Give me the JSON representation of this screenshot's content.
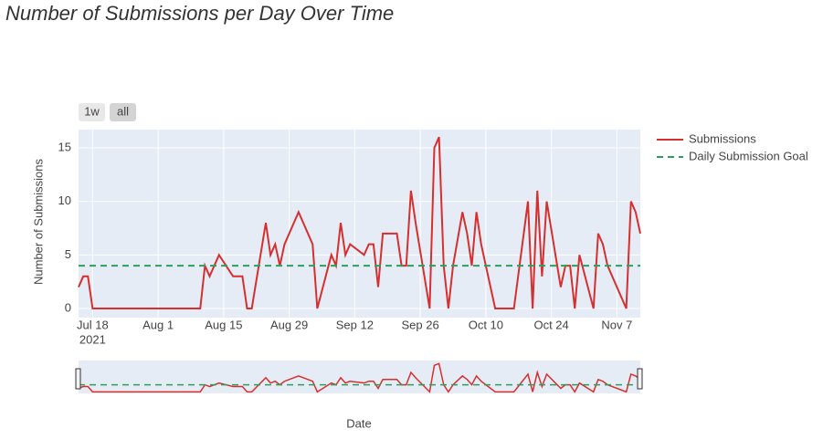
{
  "chart_data": {
    "type": "line",
    "title": "Number of Submissions per Day Over Time",
    "x_label": "Date",
    "y_label": "Number of Submissions",
    "range_buttons": [
      "1w",
      "all"
    ],
    "x": [
      "2021-07-15",
      "2021-07-16",
      "2021-07-17",
      "2021-07-18",
      "2021-08-10",
      "2021-08-11",
      "2021-08-12",
      "2021-08-14",
      "2021-08-17",
      "2021-08-19",
      "2021-08-20",
      "2021-08-21",
      "2021-08-24",
      "2021-08-25",
      "2021-08-26",
      "2021-08-27",
      "2021-08-28",
      "2021-08-31",
      "2021-09-03",
      "2021-09-04",
      "2021-09-07",
      "2021-09-08",
      "2021-09-09",
      "2021-09-10",
      "2021-09-11",
      "2021-09-14",
      "2021-09-15",
      "2021-09-16",
      "2021-09-17",
      "2021-09-18",
      "2021-09-21",
      "2021-09-22",
      "2021-09-23",
      "2021-09-24",
      "2021-09-25",
      "2021-09-28",
      "2021-09-29",
      "2021-09-30",
      "2021-10-01",
      "2021-10-02",
      "2021-10-03",
      "2021-10-05",
      "2021-10-06",
      "2021-10-07",
      "2021-10-08",
      "2021-10-09",
      "2021-10-12",
      "2021-10-16",
      "2021-10-19",
      "2021-10-20",
      "2021-10-21",
      "2021-10-22",
      "2021-10-23",
      "2021-10-26",
      "2021-10-27",
      "2021-10-28",
      "2021-10-29",
      "2021-10-30",
      "2021-11-02",
      "2021-11-03",
      "2021-11-04",
      "2021-11-05",
      "2021-11-09",
      "2021-11-10",
      "2021-11-11",
      "2021-11-12"
    ],
    "series": [
      {
        "name": "Submissions",
        "color": "#d62f2f",
        "values": [
          2,
          3,
          3,
          0,
          0,
          4,
          3,
          5,
          3,
          3,
          0,
          0,
          8,
          5,
          6,
          4,
          6,
          9,
          6,
          0,
          5,
          4,
          8,
          5,
          6,
          5,
          6,
          6,
          2,
          7,
          7,
          4,
          4,
          11,
          8,
          0,
          15,
          16,
          4,
          0,
          4,
          9,
          7,
          4,
          9,
          6,
          0,
          0,
          10,
          0,
          11,
          3,
          10,
          2,
          4,
          4,
          0,
          5,
          0,
          7,
          6,
          4,
          0,
          10,
          9,
          7
        ]
      }
    ],
    "goal": {
      "name": "Daily Submission Goal",
      "color": "#2ca05a",
      "value": 4
    },
    "xlim": [
      "2021-07-15",
      "2021-11-12"
    ],
    "xticks": [
      {
        "value": "2021-07-18",
        "label": "Jul 18"
      },
      {
        "value": "2021-08-01",
        "label": "Aug 1"
      },
      {
        "value": "2021-08-15",
        "label": "Aug 15"
      },
      {
        "value": "2021-08-29",
        "label": "Aug 29"
      },
      {
        "value": "2021-09-12",
        "label": "Sep 12"
      },
      {
        "value": "2021-09-26",
        "label": "Sep 26"
      },
      {
        "value": "2021-10-10",
        "label": "Oct 10"
      },
      {
        "value": "2021-10-24",
        "label": "Oct 24"
      },
      {
        "value": "2021-11-07",
        "label": "Nov 7"
      }
    ],
    "x_year_label": "2021",
    "ylim": [
      -0.85,
      16.7
    ],
    "yticks": [
      0,
      5,
      10,
      15
    ],
    "grid": true
  }
}
